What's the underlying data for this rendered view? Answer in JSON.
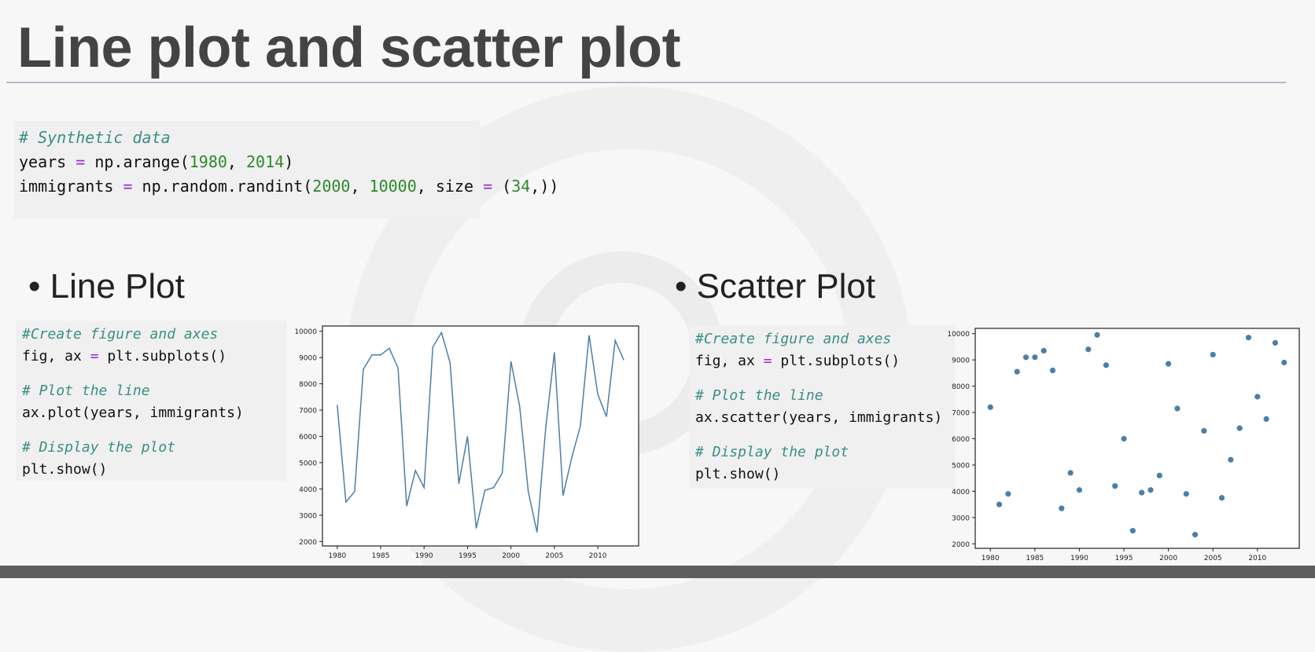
{
  "title": "Line plot and scatter plot",
  "code_top": {
    "line1": "# Synthetic data",
    "line2_parts": [
      "years ",
      "=",
      " np.arange(",
      "1980",
      ", ",
      "2014",
      ")"
    ],
    "line3_parts": [
      "immigrants ",
      "=",
      " np.random.randint(",
      "2000",
      ", ",
      "10000",
      ", size ",
      "=",
      " (",
      "34",
      ",))"
    ]
  },
  "line_section": {
    "bullet": "Line Plot",
    "code": {
      "comment1": "#Create figure and axes",
      "line1_parts": [
        "fig, ax ",
        "=",
        " plt.subplots()"
      ],
      "comment2": "# Plot the line",
      "line2": "ax.plot(years, immigrants)",
      "comment3": "# Display the plot",
      "line3": "plt.show()"
    }
  },
  "scatter_section": {
    "bullet": "Scatter Plot",
    "code": {
      "comment1": "#Create figure and axes",
      "line1_parts": [
        "fig, ax ",
        "=",
        " plt.subplots()"
      ],
      "comment2": "# Plot the line",
      "line2": "ax.scatter(years, immigrants)",
      "comment3": "# Display the plot",
      "line3": "plt.show()"
    }
  },
  "colors": {
    "series": "#4a7fa8",
    "comment": "#3a8f86",
    "number": "#2b8a2b",
    "operator": "#9b2bd0"
  },
  "chart_data": [
    {
      "type": "line",
      "x": [
        1980,
        1981,
        1982,
        1983,
        1984,
        1985,
        1986,
        1987,
        1988,
        1989,
        1990,
        1991,
        1992,
        1993,
        1994,
        1995,
        1996,
        1997,
        1998,
        1999,
        2000,
        2001,
        2002,
        2003,
        2004,
        2005,
        2006,
        2007,
        2008,
        2009,
        2010,
        2011,
        2012,
        2013
      ],
      "y": [
        7200,
        3500,
        3900,
        8550,
        9100,
        9100,
        9350,
        8600,
        3350,
        4700,
        4050,
        9400,
        9950,
        8800,
        4200,
        6000,
        2500,
        3950,
        4050,
        4600,
        8850,
        7150,
        3900,
        2350,
        6300,
        9200,
        3750,
        5200,
        6400,
        9850,
        7600,
        6750,
        9650,
        8900
      ],
      "xlim": [
        1978.3,
        2014.7
      ],
      "ylim": [
        1830,
        10200
      ],
      "xticks": [
        1980,
        1985,
        1990,
        1995,
        2000,
        2005,
        2010
      ],
      "yticks": [
        2000,
        3000,
        4000,
        5000,
        6000,
        7000,
        8000,
        9000,
        10000
      ]
    },
    {
      "type": "scatter",
      "x": [
        1980,
        1981,
        1982,
        1983,
        1984,
        1985,
        1986,
        1987,
        1988,
        1989,
        1990,
        1991,
        1992,
        1993,
        1994,
        1995,
        1996,
        1997,
        1998,
        1999,
        2000,
        2001,
        2002,
        2003,
        2004,
        2005,
        2006,
        2007,
        2008,
        2009,
        2010,
        2011,
        2012,
        2013
      ],
      "y": [
        7200,
        3500,
        3900,
        8550,
        9100,
        9100,
        9350,
        8600,
        3350,
        4700,
        4050,
        9400,
        9950,
        8800,
        4200,
        6000,
        2500,
        3950,
        4050,
        4600,
        8850,
        7150,
        3900,
        2350,
        6300,
        9200,
        3750,
        5200,
        6400,
        9850,
        7600,
        6750,
        9650,
        8900
      ],
      "xlim": [
        1978.3,
        2014.7
      ],
      "ylim": [
        1830,
        10200
      ],
      "xticks": [
        1980,
        1985,
        1990,
        1995,
        2000,
        2005,
        2010
      ],
      "yticks": [
        2000,
        3000,
        4000,
        5000,
        6000,
        7000,
        8000,
        9000,
        10000
      ]
    }
  ]
}
